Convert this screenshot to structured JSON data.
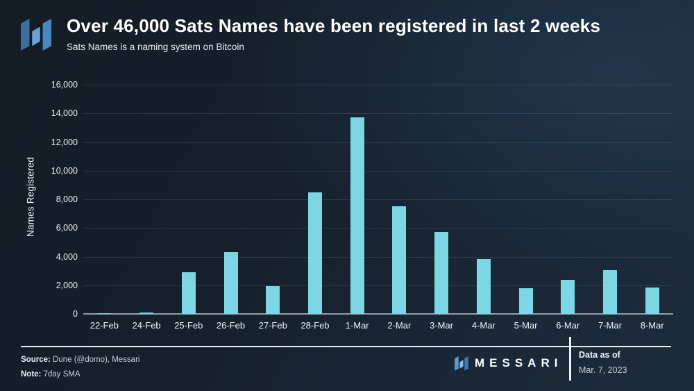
{
  "chart_data": {
    "type": "bar",
    "title": "Over 46,000 Sats Names have been registered in last 2 weeks",
    "subtitle": "Sats Names is a naming system on Bitcoin",
    "ylabel": "Names Registered",
    "xlabel": "",
    "categories": [
      "22-Feb",
      "24-Feb",
      "25-Feb",
      "26-Feb",
      "27-Feb",
      "28-Feb",
      "1-Mar",
      "2-Mar",
      "3-Mar",
      "4-Mar",
      "5-Mar",
      "6-Mar",
      "7-Mar",
      "8-Mar"
    ],
    "values": [
      60,
      80,
      2900,
      4300,
      1950,
      8500,
      13700,
      7500,
      5700,
      3850,
      1800,
      2400,
      3050,
      1850
    ],
    "ylim": [
      0,
      16000
    ],
    "yticks": [
      0,
      2000,
      4000,
      6000,
      8000,
      10000,
      12000,
      14000,
      16000
    ],
    "ytick_labels": [
      "0",
      "2,000",
      "4,000",
      "6,000",
      "8,000",
      "10,000",
      "12,000",
      "14,000",
      "16,000"
    ],
    "grid": true,
    "legend_position": "none",
    "bar_color": "#7cd6e3"
  },
  "footer": {
    "source_label": "Source:",
    "source_text": "Dune (@domo), Messari",
    "note_label": "Note:",
    "note_text": "7day SMA",
    "brand": "MESSARI",
    "data_as_of_label": "Data as of",
    "data_as_of_value": "Mar. 7, 2023"
  },
  "colors": {
    "bar": "#7cd6e3",
    "background_dark": "#141c25",
    "background_light": "#1d2c3d",
    "logo_left": "#3a6f9f",
    "logo_middle": "#6aa2d8",
    "logo_right": "#4a87c2",
    "zero_axis": "#909da9"
  }
}
